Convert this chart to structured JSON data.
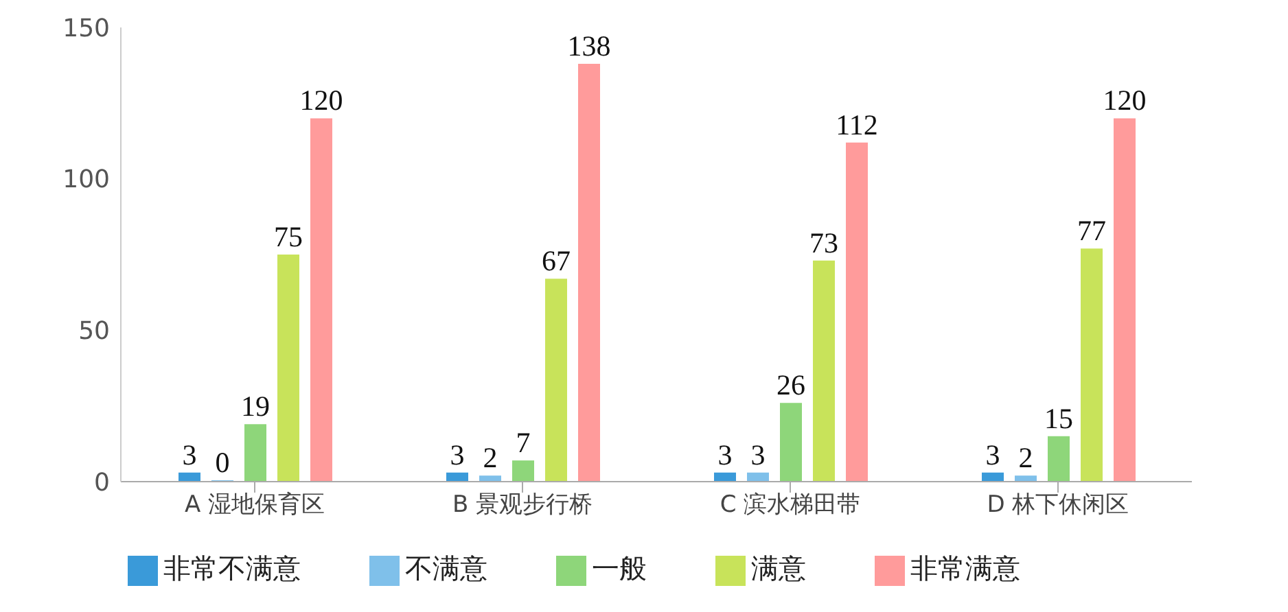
{
  "chart_data": {
    "type": "bar",
    "categories": [
      "A 湿地保育区",
      "B 景观步行桥",
      "C 滨水梯田带",
      "D 林下休闲区"
    ],
    "series": [
      {
        "name": "非常不满意",
        "color": "#3a9ad9",
        "values": [
          3,
          3,
          3,
          3
        ]
      },
      {
        "name": "不满意",
        "color": "#7fc0ea",
        "values": [
          0,
          2,
          3,
          2
        ]
      },
      {
        "name": "一般",
        "color": "#8ed67a",
        "values": [
          19,
          7,
          26,
          15
        ]
      },
      {
        "name": "满意",
        "color": "#c8e35a",
        "values": [
          75,
          67,
          73,
          77
        ]
      },
      {
        "name": "非常满意",
        "color": "#ff9b9b",
        "values": [
          120,
          138,
          112,
          120
        ]
      }
    ],
    "ylim": [
      0,
      150
    ],
    "yticks": [
      0,
      50,
      100,
      150
    ],
    "grid": false,
    "legend": "bottom",
    "data_labels": true
  }
}
